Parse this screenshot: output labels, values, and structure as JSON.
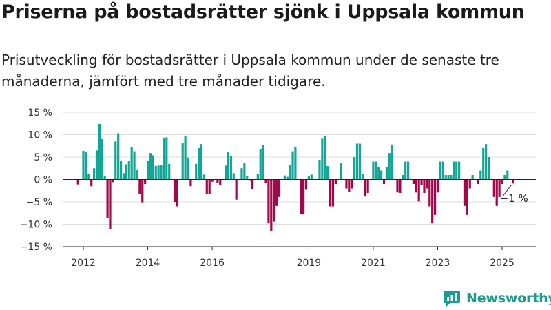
{
  "header": {
    "title": "Priserna på bostadsrätter sjönk i Uppsala kommun",
    "subtitle": "Prisutveckling för bostadsrätter i Uppsala kommun under de senaste tre månaderna, jämfört med tre månader tidigare."
  },
  "brand": {
    "name": "Newsworthy",
    "color": "#1b9c8e"
  },
  "colors": {
    "positive": "#13a595",
    "negative": "#a1084b"
  },
  "chart_data": {
    "type": "bar",
    "title": "",
    "xlabel": "",
    "ylabel": "",
    "ylim": [
      -15,
      15
    ],
    "y_ticks": [
      15,
      10,
      5,
      0,
      -5,
      -10,
      -15
    ],
    "y_tick_labels": [
      "15 %",
      "10 %",
      "5 %",
      "0 %",
      "−5 %",
      "−10 %",
      "−15 %"
    ],
    "x_ticks": [
      2012,
      2014,
      2016,
      2019,
      2021,
      2023,
      2025
    ],
    "x_tick_labels": [
      "2012",
      "2014",
      "2016",
      "2019",
      "2021",
      "2023",
      "2025"
    ],
    "grid": true,
    "start": "2011-09",
    "frequency": "monthly",
    "values": [
      0,
      0,
      -1.1,
      0,
      6.4,
      6.2,
      1.2,
      -1.5,
      2.5,
      6.5,
      12.4,
      9.0,
      0.7,
      -8.6,
      -11.0,
      -0.6,
      8.5,
      10.3,
      4.1,
      1.4,
      3.4,
      4.2,
      7.2,
      6.3,
      2.1,
      -3.3,
      -5.1,
      -1.0,
      4.1,
      5.9,
      5.4,
      3.0,
      3.1,
      3.2,
      9.3,
      9.4,
      3.5,
      0,
      -5.0,
      -6.0,
      0,
      8.2,
      9.6,
      4.9,
      -1.5,
      0,
      3.5,
      7.0,
      7.9,
      1.1,
      -3.3,
      -3.3,
      -0.5,
      -0.2,
      -0.8,
      -1.2,
      0,
      3.1,
      6.1,
      5.2,
      1.4,
      -4.5,
      0,
      2.5,
      3.6,
      0.7,
      -0.3,
      -2.1,
      0,
      1.2,
      6.8,
      7.7,
      -0.8,
      -9.8,
      -11.6,
      -9.4,
      -5.9,
      -3.9,
      0,
      0.9,
      0.6,
      3.3,
      6.3,
      7.3,
      0,
      -7.7,
      -7.8,
      -2.3,
      0.7,
      1.1,
      0,
      0,
      4.4,
      9.1,
      9.8,
      3.0,
      -6.0,
      -6.0,
      -1.0,
      0,
      3.6,
      0,
      -2.0,
      -2.7,
      -2.0,
      5.0,
      8.0,
      8.0,
      1.2,
      -3.8,
      -3.0,
      0,
      4.0,
      4.0,
      2.8,
      2.0,
      -1.0,
      2.8,
      5.9,
      7.8,
      0,
      -2.9,
      -3.0,
      1.0,
      4.0,
      4.0,
      0,
      -1.0,
      -2.9,
      -4.9,
      -1.2,
      -3.0,
      -2.0,
      -6.0,
      -9.8,
      -7.9,
      -2.9,
      4.0,
      4.0,
      1.0,
      1.0,
      1.0,
      4.0,
      4.0,
      4.0,
      0,
      -5.9,
      -7.9,
      -2.0,
      1.0,
      0,
      -1.0,
      2.0,
      7.0,
      7.9,
      5.0,
      0,
      -3.9,
      -5.9,
      -3.9,
      -1.0,
      1.0,
      2.0,
      0,
      -0.9
    ],
    "annotations": [
      {
        "text": "−1 %",
        "target": "last"
      }
    ]
  }
}
